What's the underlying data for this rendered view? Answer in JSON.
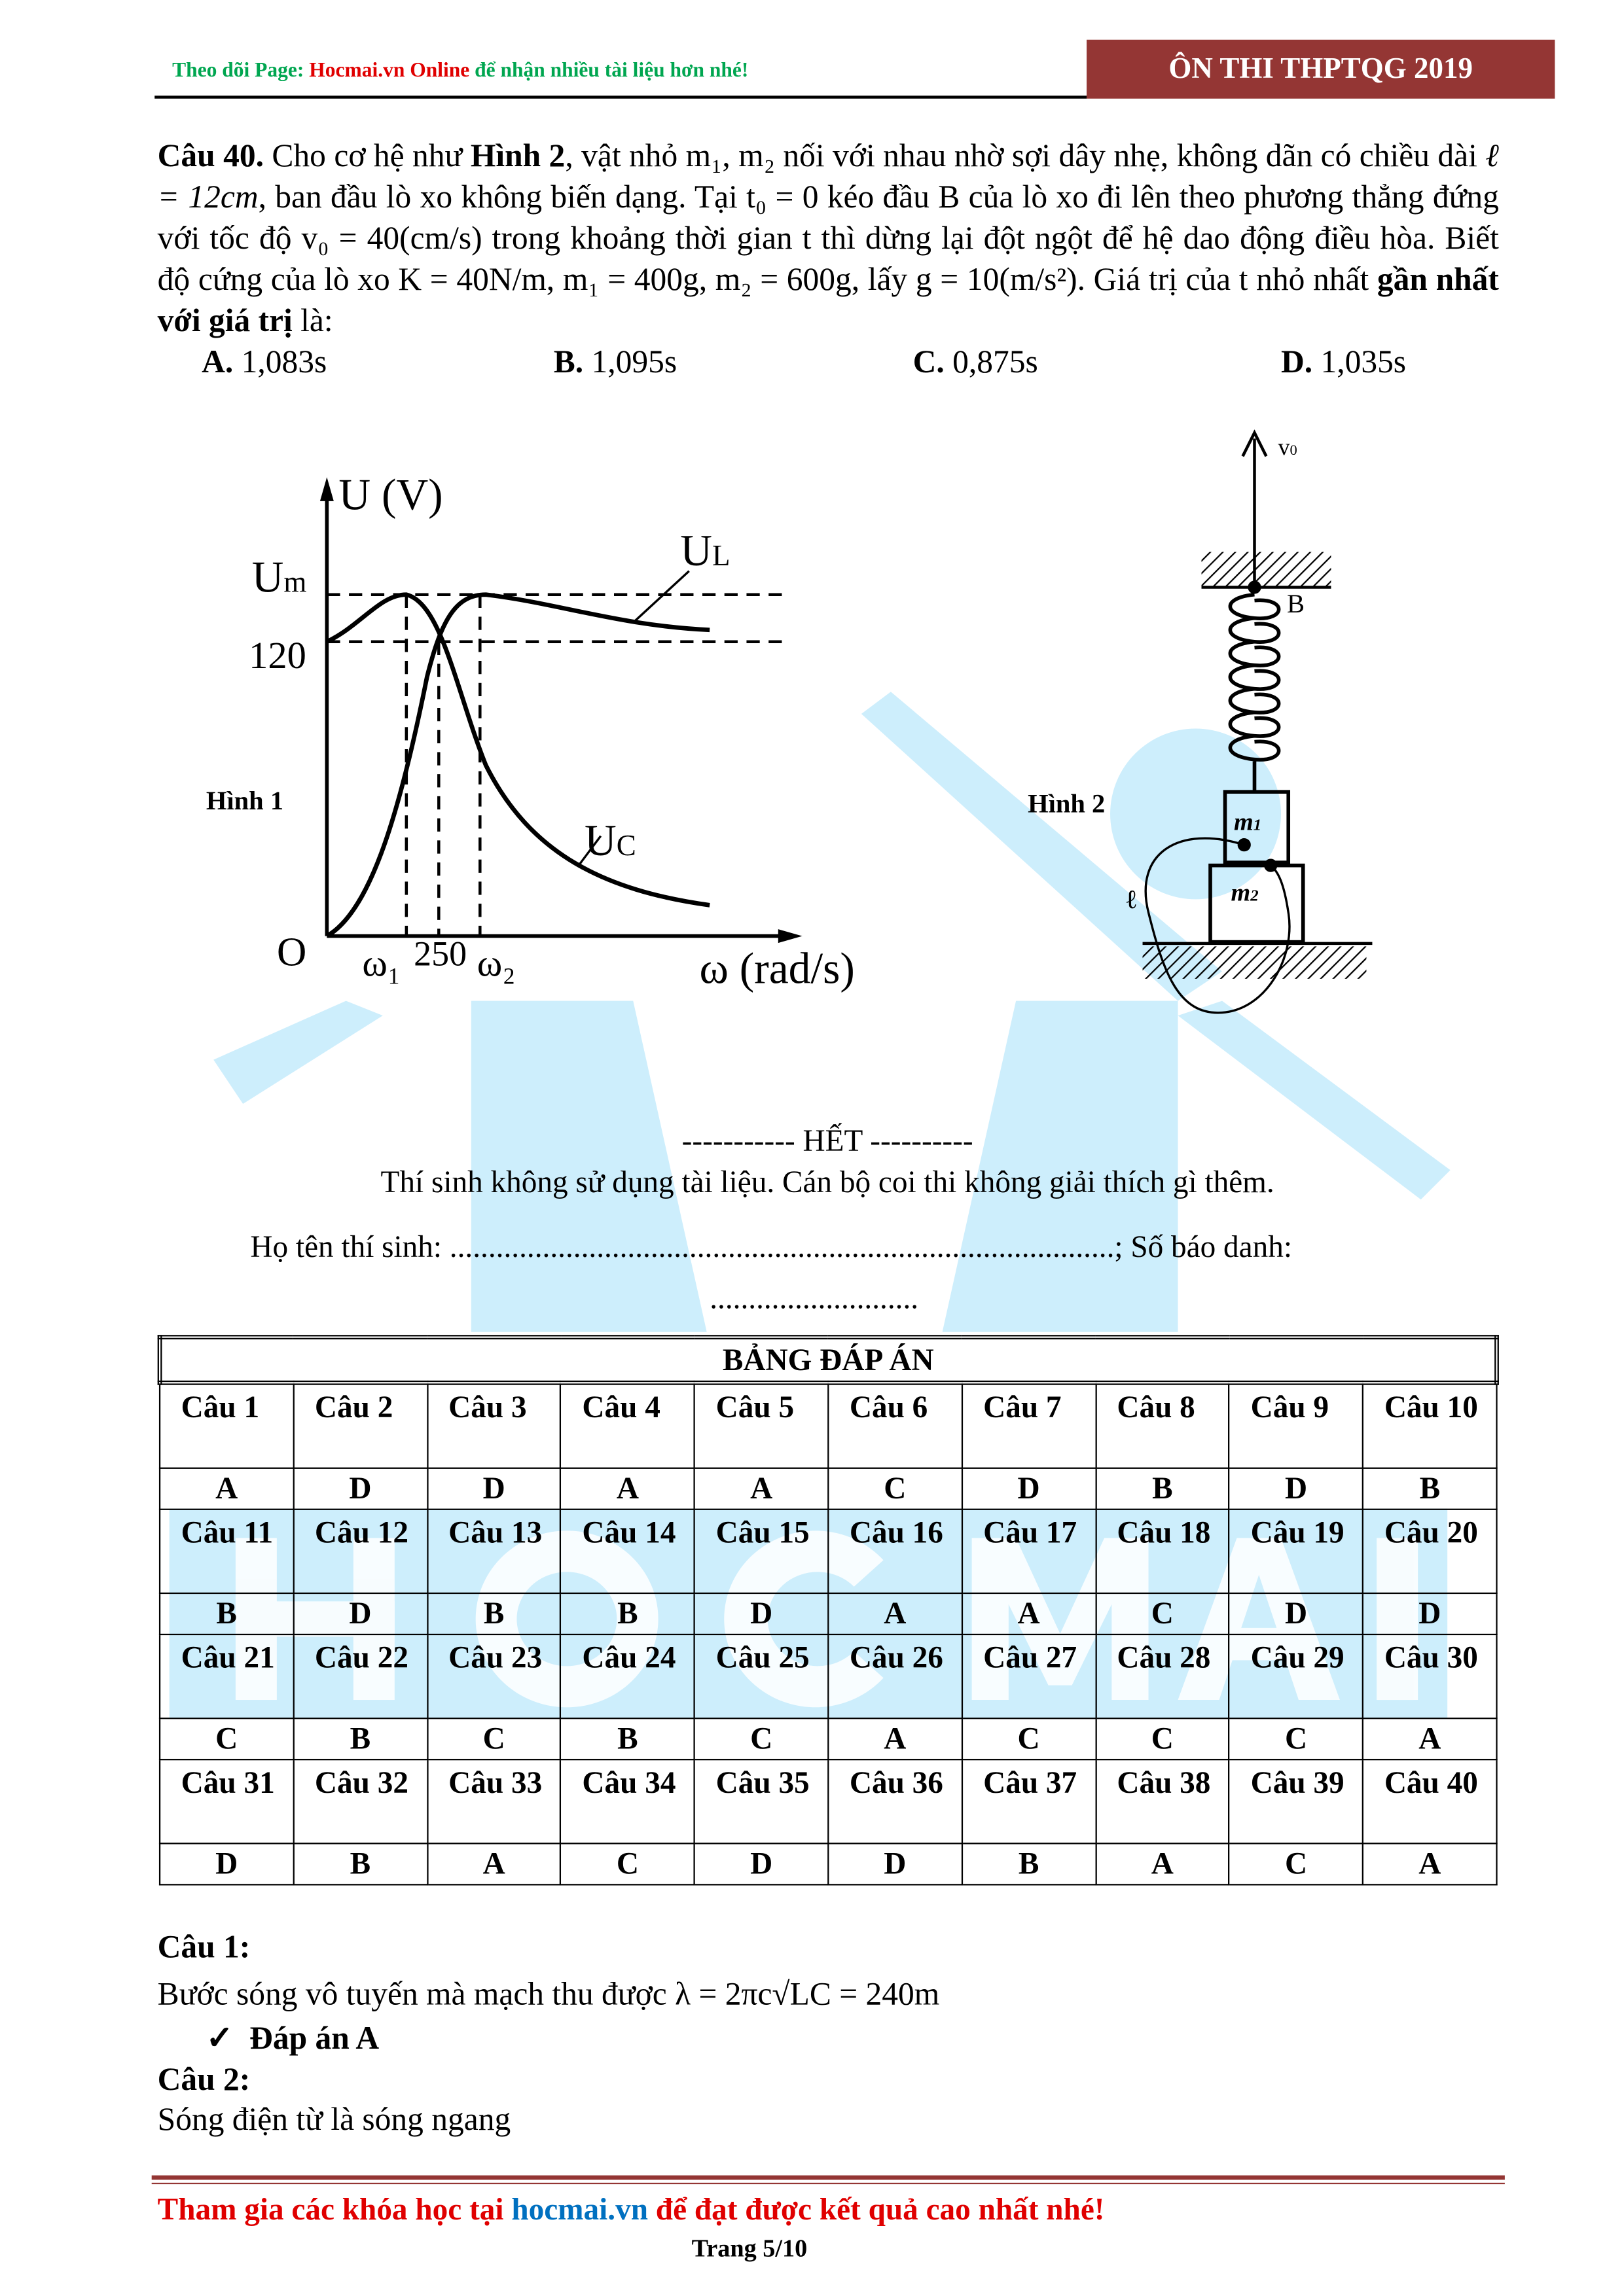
{
  "header": {
    "note_prefix": "Theo dõi Page: ",
    "note_brand": "Hocmai.vn Online",
    "note_suffix": " để nhận nhiều tài liệu hơn nhé!",
    "badge": "ÔN THI THPTQG 2019",
    "badge_color": "#943634"
  },
  "question": {
    "label": "Câu 40.",
    "t1": " Cho cơ hệ như ",
    "fig_ref": "Hình 2",
    "t2": ", vật nhỏ m₁, m₂ nối với nhau nhờ sợi dây nhẹ, không dãn có chiều dài ",
    "length": "ℓ = 12cm",
    "t3": ", ban đầu lò xo không biến dạng. Tại t₀ = 0 kéo đầu B của lò xo đi lên theo phương thẳng đứng với tốc độ v₀ = 40(cm/s) trong khoảng thời gian t thì dừng lại đột ngột để hệ dao động điều hòa. Biết độ cứng của lò xo K = 40N/m, m₁ = 400g, m₂ = 600g, lấy g = 10(m/s²). Giá trị của t nhỏ nhất ",
    "emph": "gần nhất với giá trị",
    "t4": " là:",
    "options": [
      {
        "key": "A.",
        "text": " 1,083s"
      },
      {
        "key": "B.",
        "text": " 1,095s"
      },
      {
        "key": "C.",
        "text": " 0,875s"
      },
      {
        "key": "D.",
        "text": " 1,035s"
      }
    ]
  },
  "figure1": {
    "caption": "Hình 1",
    "y_axis": "U (V)",
    "x_axis": "ω (rad/s)",
    "origin": "O",
    "um": "U",
    "um_sub": "m",
    "level": "120",
    "ul": "U",
    "ul_sub": "L",
    "uc": "U",
    "uc_sub": "C",
    "w1": "ω₁",
    "w0": "250",
    "w2": "ω₂"
  },
  "figure2": {
    "caption": "Hình 2",
    "v0": "v",
    "v0_sub": "0",
    "b": "B",
    "m1": "m",
    "m1_sub": "1",
    "m2": "m",
    "m2_sub": "2",
    "ell": "ℓ"
  },
  "end": {
    "het": "----------- HẾT ----------",
    "note": "Thí sinh không sử dụng tài liệu. Cán bộ coi thi không giải thích gì thêm.",
    "name_line": "Họ tên thí sinh: ......................................................................................; Số báo danh:",
    "dots": "..........................."
  },
  "answer_table": {
    "title": "BẢNG ĐÁP ÁN",
    "rows": [
      {
        "q": [
          "Câu 1",
          "Câu 2",
          "Câu 3",
          "Câu 4",
          "Câu 5",
          "Câu 6",
          "Câu 7",
          "Câu 8",
          "Câu 9",
          "Câu 10"
        ],
        "a": [
          "A",
          "D",
          "D",
          "A",
          "A",
          "C",
          "D",
          "B",
          "D",
          "B"
        ]
      },
      {
        "q": [
          "Câu 11",
          "Câu 12",
          "Câu 13",
          "Câu 14",
          "Câu 15",
          "Câu 16",
          "Câu 17",
          "Câu 18",
          "Câu 19",
          "Câu 20"
        ],
        "a": [
          "B",
          "D",
          "B",
          "B",
          "D",
          "A",
          "A",
          "C",
          "D",
          "D"
        ]
      },
      {
        "q": [
          "Câu 21",
          "Câu 22",
          "Câu 23",
          "Câu 24",
          "Câu 25",
          "Câu 26",
          "Câu 27",
          "Câu 28",
          "Câu 29",
          "Câu 30"
        ],
        "a": [
          "C",
          "B",
          "C",
          "B",
          "C",
          "A",
          "C",
          "C",
          "C",
          "A"
        ]
      },
      {
        "q": [
          "Câu 31",
          "Câu 32",
          "Câu 33",
          "Câu 34",
          "Câu 35",
          "Câu 36",
          "Câu 37",
          "Câu 38",
          "Câu 39",
          "Câu 40"
        ],
        "a": [
          "D",
          "B",
          "A",
          "C",
          "D",
          "D",
          "B",
          "A",
          "C",
          "A"
        ]
      }
    ]
  },
  "solutions": [
    {
      "title": "Câu 1:",
      "text": "Bước sóng vô tuyến mà mạch thu được  λ = 2πc√LC = 240m",
      "answer": "Đáp án A",
      "check": "✓"
    },
    {
      "title": "Câu 2:",
      "text": "Sóng điện từ là sóng ngang"
    }
  ],
  "footer": {
    "t1": "Tham gia các khóa học  tại ",
    "link": "hocmai.vn",
    "t2": " để đạt được kết quả cao nhất nhé!",
    "page": "Trang 5/10"
  },
  "watermark": {
    "text": "HOCMAI",
    "color": "#cdeefc"
  }
}
